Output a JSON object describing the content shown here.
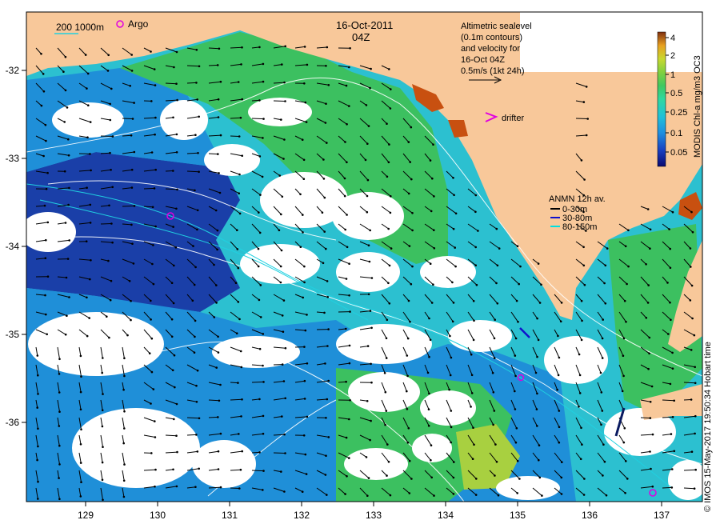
{
  "header": {
    "date": "16-Oct-2011",
    "time": "04Z"
  },
  "legend": {
    "depth_contours": "200  1000m",
    "argo_label": "Argo",
    "altimetry_lines": [
      "Altimetric sealevel",
      "(0.1m contours)",
      "and velocity for",
      "16-Oct 04Z",
      "0.5m/s (1kt 24h)"
    ],
    "drifter_label": "drifter",
    "anmn_title": "ANMN 12h av.",
    "anmn_items": [
      {
        "label": "0-30m",
        "color": "#000000"
      },
      {
        "label": "30-80m",
        "color": "#1010cc"
      },
      {
        "label": "80-150m",
        "color": "#00e0e0"
      }
    ]
  },
  "colorbar": {
    "title": "MODIS Chl-a mg/m3 OC3",
    "ticks": [
      "4",
      "2",
      "1",
      "0.5",
      "0.25",
      "0.1",
      "0.05"
    ],
    "colors": [
      "#0a0a70",
      "#1a3fc0",
      "#1f8fe0",
      "#20c0d8",
      "#30d8a0",
      "#40c860",
      "#80d040",
      "#c8d830",
      "#e8a020",
      "#c85010",
      "#803010"
    ]
  },
  "axes": {
    "x_ticks": [
      "129",
      "130",
      "131",
      "132",
      "133",
      "134",
      "135",
      "136",
      "137"
    ],
    "y_ticks": [
      "-32",
      "-33",
      "-34",
      "-35",
      "-36"
    ]
  },
  "credit": "© IMOS 15-May-2017 19:50:34 Hobart time",
  "colors": {
    "land": "#f8c89a",
    "ocean_dark": "#1a3fa8",
    "ocean_mid": "#1f8fd8",
    "ocean_cyan": "#2cc0d0",
    "ocean_green": "#3cc060",
    "argo": "#e000e0"
  }
}
